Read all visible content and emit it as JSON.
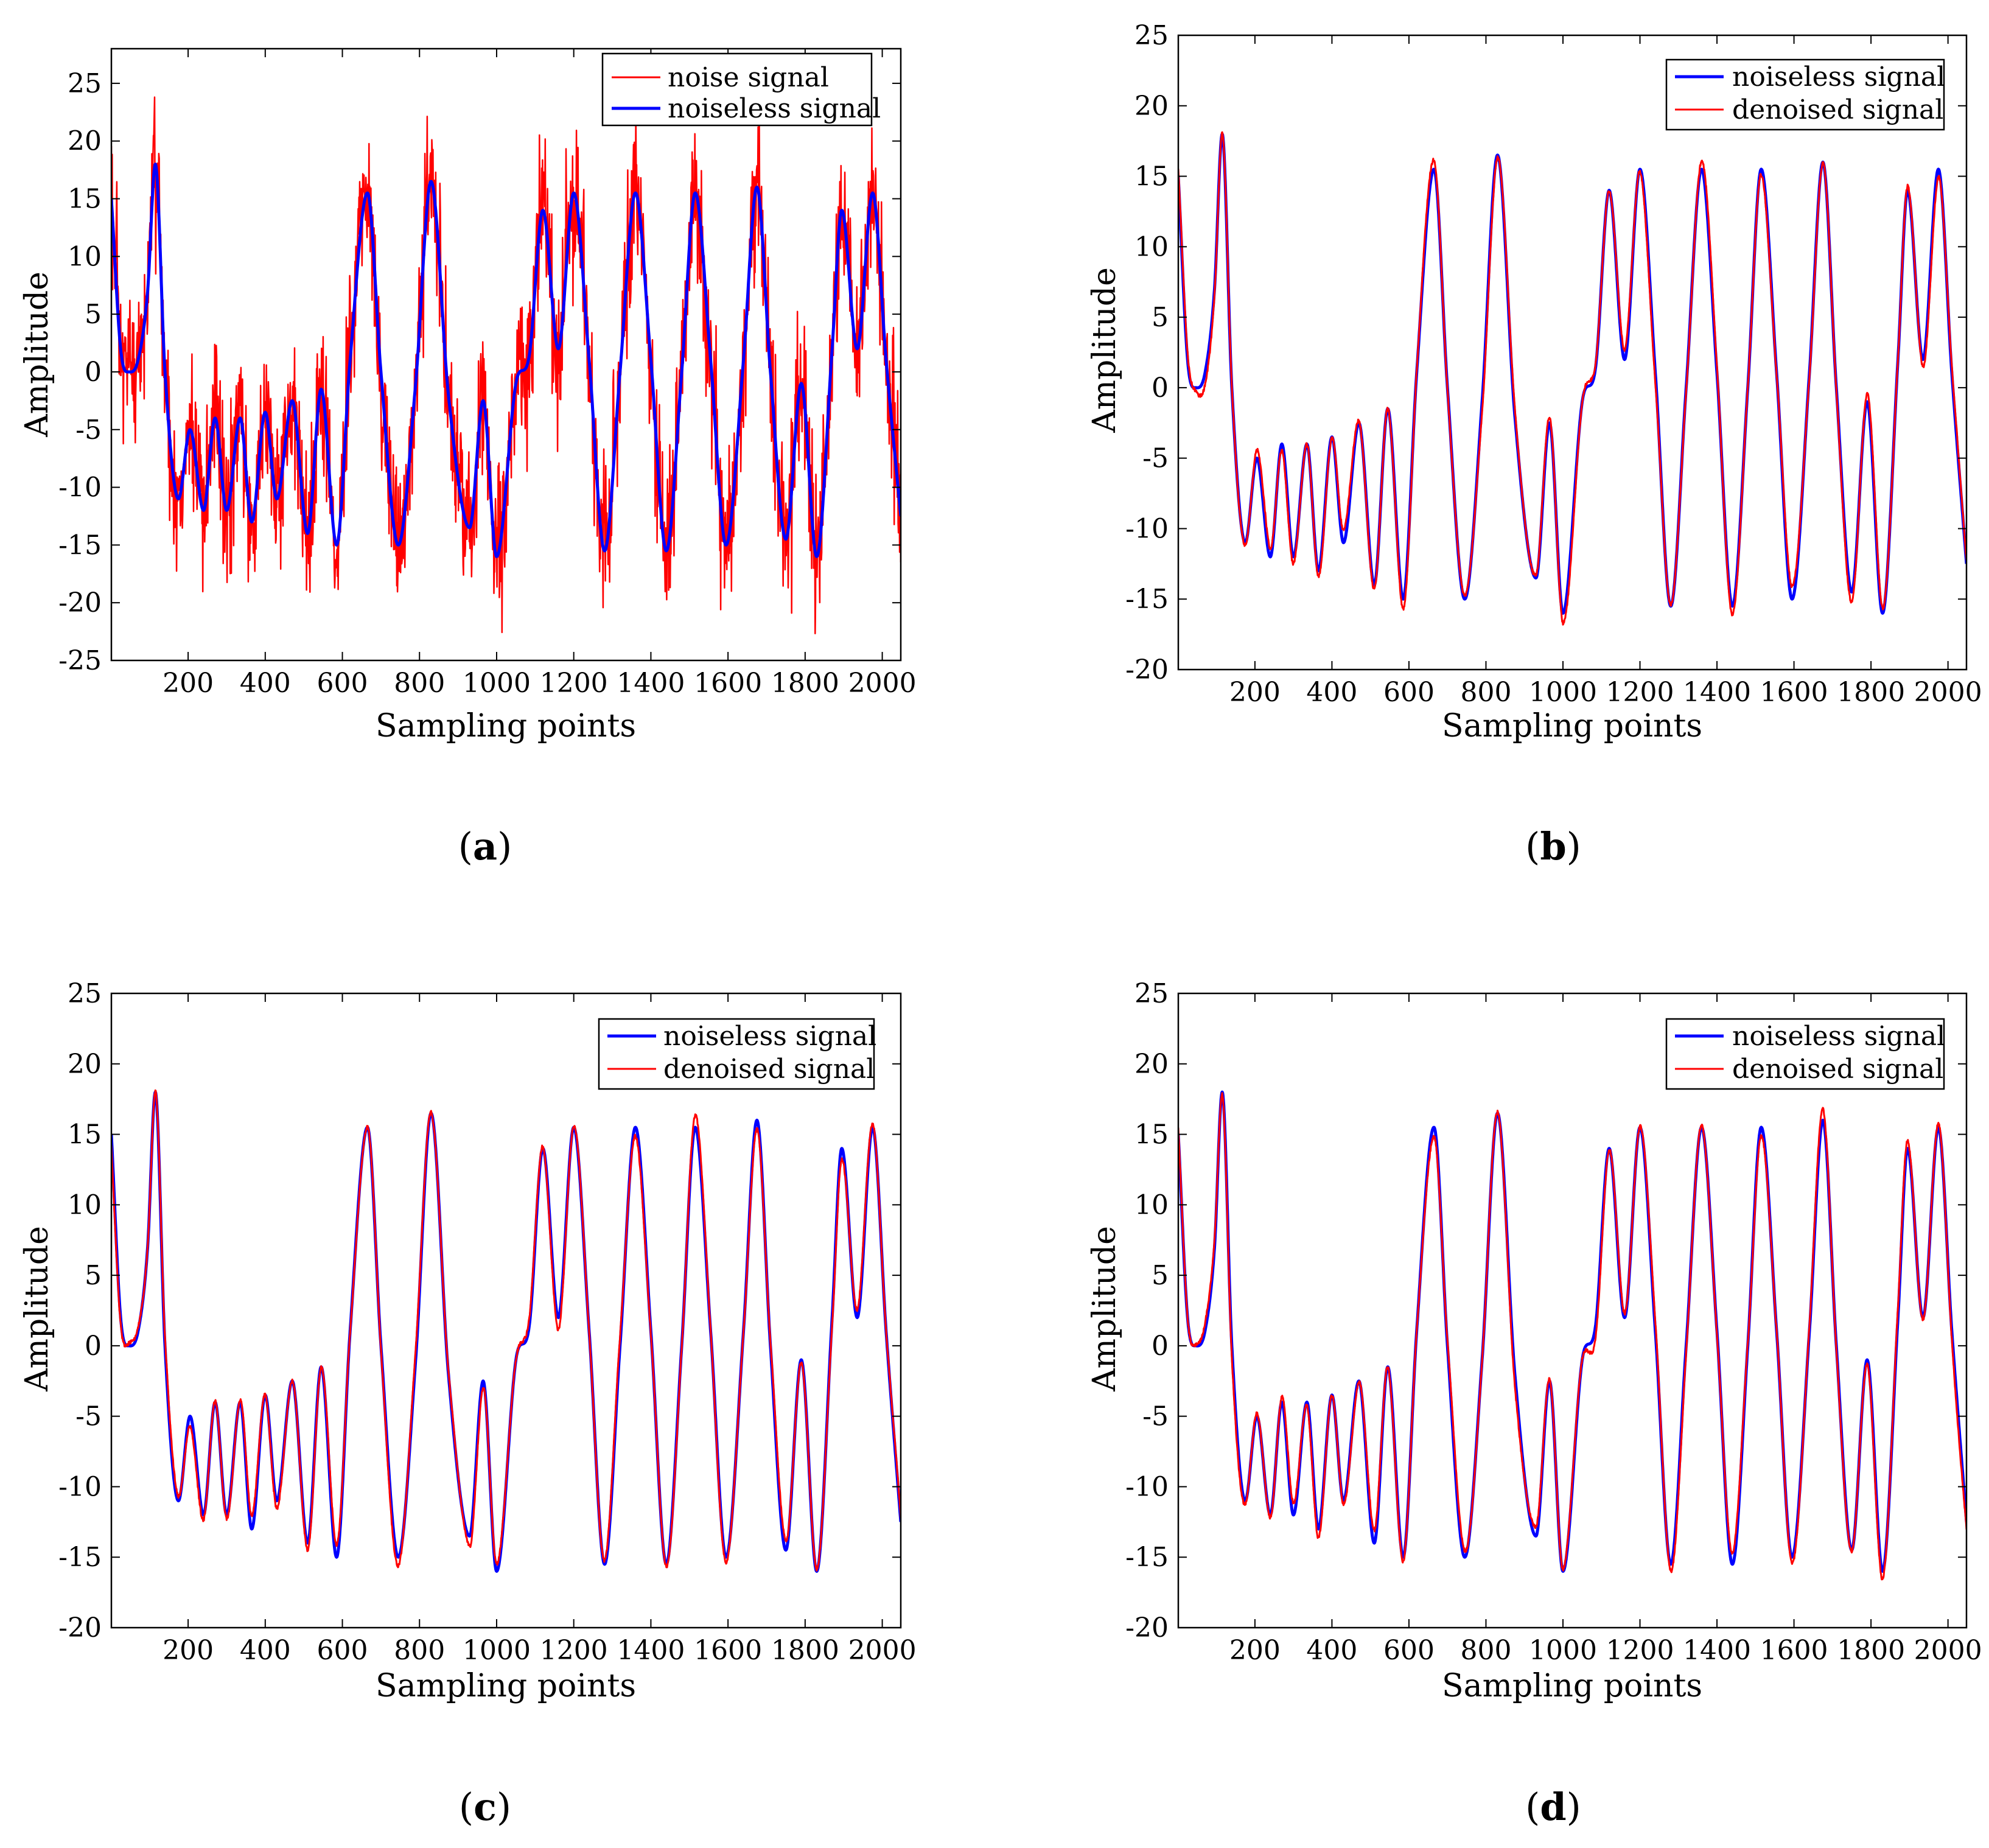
{
  "figure": {
    "captions": [
      "(a)",
      "(b)",
      "(c)",
      "(d)"
    ],
    "caption_letters": [
      "a",
      "b",
      "c",
      "d"
    ]
  },
  "colors": {
    "noise": "#ff0000",
    "noiseless": "#0000ff",
    "denoised": "#ff0000",
    "axis": "#000000"
  },
  "chart_data": [
    {
      "id": "a",
      "type": "line",
      "caption": "(a)",
      "xlabel": "Sampling points",
      "ylabel": "Amplitude",
      "xlim": [
        1,
        2048
      ],
      "ylim": [
        -25,
        28
      ],
      "xticks": [
        200,
        400,
        600,
        800,
        1000,
        1200,
        1400,
        1600,
        1800,
        2000
      ],
      "yticks": [
        -25,
        -20,
        -15,
        -10,
        -5,
        0,
        5,
        10,
        15,
        20,
        25
      ],
      "legend_position": "top-right",
      "series": [
        {
          "name": "noise signal",
          "role": "noise",
          "color": "#ff0000",
          "width": 2.5,
          "noise_amplitude": 3.2
        },
        {
          "name": "noiseless signal",
          "role": "clean",
          "color": "#0000ff",
          "width": 5
        }
      ]
    },
    {
      "id": "b",
      "type": "line",
      "caption": "(b)",
      "xlabel": "Sampling points",
      "ylabel": "Amplitude",
      "xlim": [
        1,
        2048
      ],
      "ylim": [
        -20,
        25
      ],
      "xticks": [
        200,
        400,
        600,
        800,
        1000,
        1200,
        1400,
        1600,
        1800,
        2000
      ],
      "yticks": [
        -20,
        -15,
        -10,
        -5,
        0,
        5,
        10,
        15,
        20,
        25
      ],
      "legend_position": "top-right",
      "series": [
        {
          "name": "noiseless signal",
          "role": "clean",
          "color": "#0000ff",
          "width": 5
        },
        {
          "name": "denoised signal",
          "role": "denoised",
          "color": "#ff0000",
          "width": 3
        }
      ]
    },
    {
      "id": "c",
      "type": "line",
      "caption": "(c)",
      "xlabel": "Sampling points",
      "ylabel": "Amplitude",
      "xlim": [
        1,
        2048
      ],
      "ylim": [
        -20,
        25
      ],
      "xticks": [
        200,
        400,
        600,
        800,
        1000,
        1200,
        1400,
        1600,
        1800,
        2000
      ],
      "yticks": [
        -20,
        -15,
        -10,
        -5,
        0,
        5,
        10,
        15,
        20,
        25
      ],
      "legend_position": "top-right",
      "series": [
        {
          "name": "noiseless signal",
          "role": "clean",
          "color": "#0000ff",
          "width": 5
        },
        {
          "name": "denoised signal",
          "role": "denoised",
          "color": "#ff0000",
          "width": 3
        }
      ]
    },
    {
      "id": "d",
      "type": "line",
      "caption": "(d)",
      "xlabel": "Sampling points",
      "ylabel": "Amplitude",
      "xlim": [
        1,
        2048
      ],
      "ylim": [
        -20,
        25
      ],
      "xticks": [
        200,
        400,
        600,
        800,
        1000,
        1200,
        1400,
        1600,
        1800,
        2000
      ],
      "yticks": [
        -20,
        -15,
        -10,
        -5,
        0,
        5,
        10,
        15,
        20,
        25
      ],
      "legend_position": "top-right",
      "series": [
        {
          "name": "noiseless signal",
          "role": "clean",
          "color": "#0000ff",
          "width": 5
        },
        {
          "name": "denoised signal",
          "role": "denoised",
          "color": "#ff0000",
          "width": 3
        }
      ]
    }
  ],
  "signal_keypoints": {
    "x": [
      1,
      25,
      45,
      70,
      95,
      115,
      140,
      175,
      205,
      240,
      270,
      300,
      335,
      365,
      400,
      430,
      470,
      510,
      545,
      585,
      620,
      665,
      700,
      745,
      790,
      830,
      875,
      930,
      965,
      1000,
      1050,
      1085,
      1120,
      1160,
      1200,
      1240,
      1280,
      1320,
      1360,
      1400,
      1440,
      1480,
      1515,
      1555,
      1595,
      1640,
      1675,
      1710,
      1750,
      1790,
      1830,
      1870,
      1895,
      1935,
      1975,
      2010,
      2048
    ],
    "y": [
      15,
      2,
      0,
      1,
      7,
      18,
      0,
      -11,
      -5,
      -12,
      -4,
      -12,
      -4,
      -13,
      -3.5,
      -11,
      -2.5,
      -14,
      -1.5,
      -15,
      1,
      15.5,
      0,
      -15,
      -1,
      16.5,
      -2,
      -13.5,
      -2.5,
      -16,
      -1,
      1.5,
      14,
      2,
      15.5,
      1,
      -15.5,
      0,
      15.5,
      1,
      -15.5,
      0,
      15.5,
      1,
      -15,
      1,
      16,
      0,
      -14.5,
      -1,
      -16,
      2,
      14,
      2,
      15.5,
      1,
      -12.5
    ]
  }
}
